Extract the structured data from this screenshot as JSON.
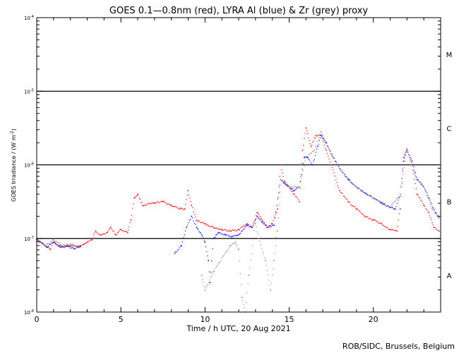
{
  "chart_data": {
    "type": "scatter",
    "title": "GOES 0.1—0.8nm (red), LYRA Al (blue) & Zr (grey) proxy",
    "xlabel": "Time / h UTC, 20 Aug 2021",
    "ylabel": "GOES Irradiance / (W m",
    "ylabel_sup": "-2",
    "ylabel_close": ")",
    "credit": "ROB/SIDC, Brussels, Belgium",
    "xlim": [
      0,
      24
    ],
    "ylim_log10": [
      -8,
      -4
    ],
    "x_ticks": [
      {
        "value": 0,
        "label": "0"
      },
      {
        "value": 5,
        "label": "5"
      },
      {
        "value": 10,
        "label": "10"
      },
      {
        "value": 15,
        "label": "15"
      },
      {
        "value": 20,
        "label": "20"
      }
    ],
    "y_ticks": [
      {
        "exp": -8,
        "base": "10",
        "sup": "-8"
      },
      {
        "exp": -7,
        "base": "10",
        "sup": "-7"
      },
      {
        "exp": -6,
        "base": "10",
        "sup": "-6"
      },
      {
        "exp": -5,
        "base": "10",
        "sup": "-5"
      },
      {
        "exp": -4,
        "base": "10",
        "sup": "-4"
      }
    ],
    "class_lines_log10": [
      -7,
      -6,
      -5
    ],
    "flare_classes": [
      {
        "label": "A",
        "center_log10": -7.5
      },
      {
        "label": "B",
        "center_log10": -6.5
      },
      {
        "label": "C",
        "center_log10": -5.5
      },
      {
        "label": "M",
        "center_log10": -4.5
      }
    ],
    "series": [
      {
        "name": "GOES 0.1-0.8nm",
        "color": "#ff0000",
        "points": [
          [
            0,
            -7.0
          ],
          [
            0.2,
            -7.05
          ],
          [
            0.5,
            -7.1
          ],
          [
            0.8,
            -7.15
          ],
          [
            1.0,
            -7.05
          ],
          [
            1.3,
            -7.1
          ],
          [
            1.6,
            -7.12
          ],
          [
            2.0,
            -7.1
          ],
          [
            2.5,
            -7.12
          ],
          [
            2.8,
            -7.08
          ],
          [
            3.0,
            -7.05
          ],
          [
            3.3,
            -7.02
          ],
          [
            3.5,
            -6.9
          ],
          [
            3.8,
            -6.95
          ],
          [
            4.2,
            -6.92
          ],
          [
            4.4,
            -6.85
          ],
          [
            4.7,
            -6.95
          ],
          [
            5.0,
            -6.88
          ],
          [
            5.4,
            -6.92
          ],
          [
            5.6,
            -6.75
          ],
          [
            5.8,
            -6.45
          ],
          [
            6.0,
            -6.4
          ],
          [
            6.3,
            -6.55
          ],
          [
            7.0,
            -6.52
          ],
          [
            7.5,
            -6.5
          ],
          [
            8.0,
            -6.55
          ],
          [
            8.5,
            -6.6
          ],
          [
            8.8,
            -6.6
          ],
          [
            9.0,
            -6.35
          ],
          [
            9.2,
            -6.55
          ],
          [
            9.5,
            -6.75
          ],
          [
            10.0,
            -6.8
          ],
          [
            10.5,
            -6.85
          ],
          [
            11.0,
            -6.88
          ],
          [
            11.5,
            -6.9
          ],
          [
            12.0,
            -6.88
          ],
          [
            12.5,
            -6.8
          ],
          [
            12.8,
            -6.85
          ],
          [
            13.1,
            -6.65
          ],
          [
            13.4,
            -6.75
          ],
          [
            13.7,
            -6.85
          ],
          [
            14.0,
            -6.8
          ],
          [
            14.3,
            -6.6
          ],
          [
            14.5,
            -6.0
          ],
          [
            14.7,
            -6.22
          ],
          [
            15.0,
            -6.3
          ],
          [
            15.3,
            -6.4
          ],
          [
            15.6,
            -6.5
          ],
          [
            15.8,
            -5.8
          ],
          [
            16.0,
            -5.5
          ],
          [
            16.3,
            -5.75
          ],
          [
            16.6,
            -5.6
          ],
          [
            16.9,
            -5.6
          ],
          [
            17.2,
            -5.8
          ],
          [
            17.5,
            -6.0
          ],
          [
            18.0,
            -6.35
          ],
          [
            18.5,
            -6.5
          ],
          [
            19.0,
            -6.6
          ],
          [
            19.5,
            -6.7
          ],
          [
            20.0,
            -6.75
          ],
          [
            20.5,
            -6.8
          ],
          [
            21.0,
            -6.88
          ],
          [
            21.4,
            -6.9
          ],
          [
            21.6,
            -6.6
          ],
          [
            21.8,
            -5.9
          ],
          [
            22.0,
            -5.8
          ],
          [
            22.3,
            -6.0
          ],
          [
            22.6,
            -6.4
          ],
          [
            23.0,
            -6.55
          ],
          [
            23.3,
            -6.65
          ],
          [
            23.6,
            -6.85
          ],
          [
            23.9,
            -6.9
          ]
        ]
      },
      {
        "name": "LYRA Al proxy",
        "color": "#0000ff",
        "points": [
          [
            0,
            -7.02
          ],
          [
            0.3,
            -7.06
          ],
          [
            0.6,
            -7.12
          ],
          [
            1.0,
            -7.05
          ],
          [
            1.4,
            -7.12
          ],
          [
            1.8,
            -7.1
          ],
          [
            2.2,
            -7.14
          ],
          [
            2.6,
            -7.1
          ],
          [
            8.2,
            -7.2
          ],
          [
            8.6,
            -7.1
          ],
          [
            8.9,
            -6.85
          ],
          [
            9.2,
            -6.7
          ],
          [
            9.5,
            -6.85
          ],
          [
            9.8,
            -6.95
          ],
          [
            10.0,
            -7.05
          ],
          [
            10.2,
            -7.3
          ],
          [
            10.3,
            -7.6
          ],
          [
            10.5,
            -7.0
          ],
          [
            10.8,
            -6.92
          ],
          [
            11.2,
            -6.95
          ],
          [
            11.6,
            -6.98
          ],
          [
            12.0,
            -6.95
          ],
          [
            12.5,
            -6.82
          ],
          [
            12.8,
            -6.85
          ],
          [
            13.1,
            -6.7
          ],
          [
            13.4,
            -6.78
          ],
          [
            13.7,
            -6.85
          ],
          [
            14.1,
            -6.82
          ],
          [
            14.5,
            -6.2
          ],
          [
            14.7,
            -6.25
          ],
          [
            15.0,
            -6.3
          ],
          [
            15.3,
            -6.35
          ],
          [
            15.6,
            -6.3
          ],
          [
            15.9,
            -5.9
          ],
          [
            16.1,
            -5.9
          ],
          [
            16.4,
            -6.0
          ],
          [
            16.7,
            -5.75
          ],
          [
            16.9,
            -5.6
          ],
          [
            17.2,
            -5.7
          ],
          [
            17.5,
            -5.85
          ],
          [
            18.0,
            -6.05
          ],
          [
            18.5,
            -6.2
          ],
          [
            19.0,
            -6.3
          ],
          [
            19.5,
            -6.38
          ],
          [
            20.0,
            -6.45
          ],
          [
            20.5,
            -6.52
          ],
          [
            21.0,
            -6.58
          ],
          [
            21.3,
            -6.6
          ],
          [
            21.6,
            -6.4
          ],
          [
            21.8,
            -5.95
          ],
          [
            22.0,
            -5.8
          ],
          [
            22.3,
            -5.95
          ],
          [
            22.6,
            -6.2
          ],
          [
            23.0,
            -6.3
          ],
          [
            23.3,
            -6.45
          ],
          [
            23.7,
            -6.65
          ],
          [
            23.9,
            -6.72
          ]
        ]
      },
      {
        "name": "LYRA Zr proxy",
        "color": "#888888",
        "points": [
          [
            0,
            -7.0
          ],
          [
            0.5,
            -7.1
          ],
          [
            1.0,
            -7.02
          ],
          [
            1.5,
            -7.1
          ],
          [
            2.0,
            -7.08
          ],
          [
            2.5,
            -7.1
          ],
          [
            9.8,
            -7.5
          ],
          [
            10.0,
            -7.7
          ],
          [
            10.5,
            -7.45
          ],
          [
            11.5,
            -7.1
          ],
          [
            11.8,
            -7.05
          ],
          [
            12.0,
            -7.15
          ],
          [
            12.2,
            -7.8
          ],
          [
            12.4,
            -8.0
          ],
          [
            12.6,
            -7.5
          ],
          [
            13.0,
            -6.8
          ],
          [
            13.2,
            -7.0
          ],
          [
            13.6,
            -7.3
          ],
          [
            13.9,
            -7.7
          ],
          [
            14.1,
            -7.3
          ],
          [
            14.3,
            -6.9
          ],
          [
            14.5,
            -6.2
          ],
          [
            15.0,
            -6.3
          ],
          [
            15.6,
            -6.3
          ],
          [
            16.0,
            -5.9
          ],
          [
            16.5,
            -5.8
          ],
          [
            16.9,
            -5.55
          ],
          [
            17.3,
            -5.75
          ],
          [
            18.0,
            -6.05
          ],
          [
            19.0,
            -6.3
          ],
          [
            20.0,
            -6.45
          ],
          [
            21.0,
            -6.58
          ],
          [
            21.6,
            -6.4
          ],
          [
            22.0,
            -5.78
          ],
          [
            22.5,
            -6.15
          ],
          [
            23.0,
            -6.3
          ],
          [
            23.5,
            -6.6
          ],
          [
            23.9,
            -6.72
          ]
        ]
      }
    ]
  }
}
